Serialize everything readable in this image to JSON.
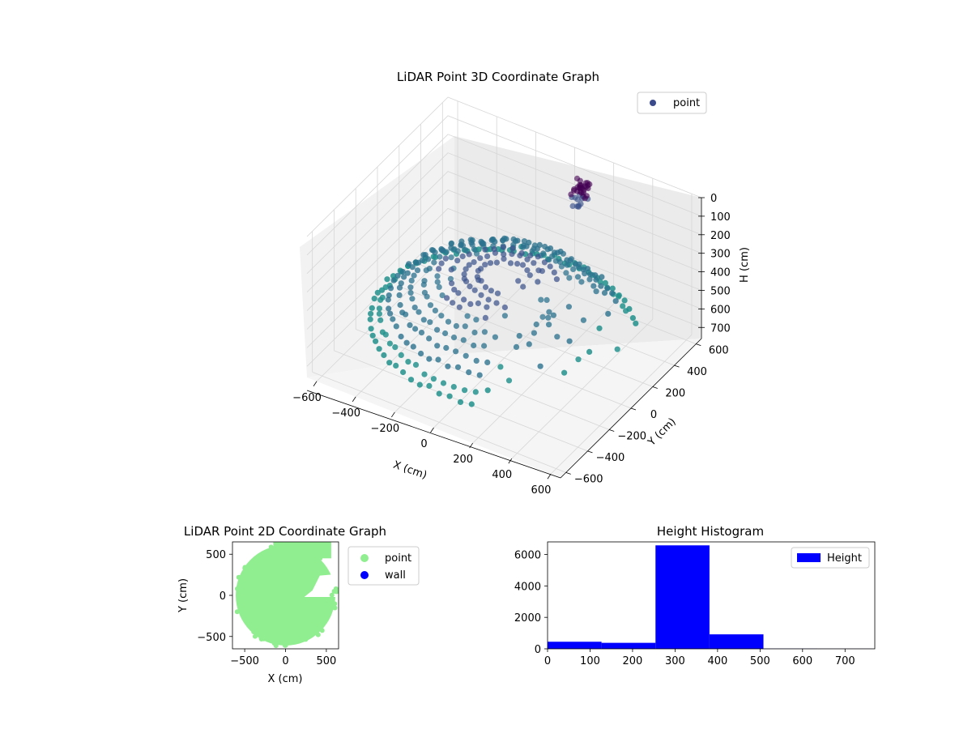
{
  "figure": {
    "background": "#ffffff"
  },
  "chart_data": [
    {
      "type": "scatter",
      "projection": "3d",
      "title": "LiDAR Point 3D Coordinate Graph",
      "xlabel": "X (cm)",
      "ylabel": "Y (cm)",
      "zlabel": "H (cm)",
      "xlim": [
        -650,
        650
      ],
      "ylim": [
        -650,
        650
      ],
      "zlim": [
        760,
        0
      ],
      "z_inverted": true,
      "xticks": [
        -600,
        -400,
        -200,
        0,
        200,
        400,
        600
      ],
      "yticks": [
        -600,
        -400,
        -200,
        0,
        200,
        400,
        600
      ],
      "zticks": [
        0,
        100,
        200,
        300,
        400,
        500,
        600,
        700
      ],
      "grid": true,
      "colormap": "viridis-like (by height)",
      "point_colors": [
        "#440154",
        "#3b528b",
        "#2c728e",
        "#21918c"
      ],
      "legend": {
        "placement": "upper-right",
        "entries": [
          {
            "label": "point",
            "color": "#3b4a8a"
          }
        ]
      },
      "description_of_data": "Roughly circular ring of points, radius ~600 cm, heights mostly 250-650 cm, with an open sector to the +X side and a dense dark cluster near x~100, y~600, h~100.",
      "series": [
        {
          "name": "point",
          "shape": {
            "rings": [
              {
                "r": 600,
                "h": 600
              },
              {
                "r": 560,
                "h": 560
              },
              {
                "r": 520,
                "h": 500
              },
              {
                "r": 470,
                "h": 460
              },
              {
                "r": 420,
                "h": 420
              },
              {
                "r": 360,
                "h": 390
              },
              {
                "r": 300,
                "h": 360
              },
              {
                "r": 240,
                "h": 340
              },
              {
                "r": 180,
                "h": 330
              },
              {
                "r": 120,
                "h": 320
              }
            ],
            "gap_deg": [
              -70,
              40
            ],
            "cluster": {
              "x": 80,
              "y": 600,
              "h": 100,
              "count": 40
            }
          }
        }
      ]
    },
    {
      "type": "scatter",
      "title": "LiDAR Point 2D Coordinate Graph",
      "xlabel": "X (cm)",
      "ylabel": "Y (cm)",
      "xlim": [
        -650,
        650
      ],
      "ylim": [
        -650,
        650
      ],
      "xticks": [
        -500,
        0,
        500
      ],
      "yticks": [
        -500,
        0,
        500
      ],
      "legend": {
        "placement": "outside-right",
        "entries": [
          {
            "label": "point",
            "color": "#90ee90"
          },
          {
            "label": "wall",
            "color": "#0000ff"
          }
        ]
      },
      "series": [
        {
          "name": "point",
          "color": "#90ee90",
          "region": "disc radius ~600 cm, missing the +X sector between y=-20 and y=+250 beyond x~220"
        },
        {
          "name": "wall",
          "color": "#0000ff",
          "points": []
        }
      ]
    },
    {
      "type": "bar",
      "subtype": "histogram",
      "title": "Height Histogram",
      "xlim": [
        0,
        770
      ],
      "ylim": [
        0,
        6800
      ],
      "xticks": [
        0,
        100,
        200,
        300,
        400,
        500,
        600,
        700
      ],
      "yticks": [
        0,
        2000,
        4000,
        6000
      ],
      "bin_edges": [
        0,
        127,
        254,
        381,
        508,
        635,
        762
      ],
      "values": [
        450,
        380,
        6580,
        920,
        10,
        5
      ],
      "color": "#0000ff",
      "legend": {
        "placement": "upper-right",
        "entries": [
          {
            "label": "Height",
            "color": "#0000ff"
          }
        ]
      }
    }
  ]
}
